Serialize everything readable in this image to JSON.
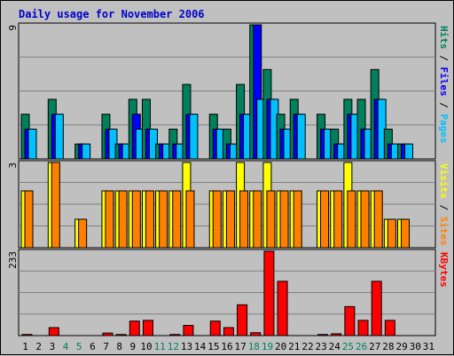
{
  "chart_data": {
    "type": "bar",
    "title": "Daily usage for November 2006",
    "days": [
      "1",
      "2",
      "3",
      "4",
      "5",
      "6",
      "7",
      "8",
      "9",
      "10",
      "11",
      "12",
      "13",
      "14",
      "15",
      "16",
      "17",
      "18",
      "19",
      "20",
      "21",
      "22",
      "23",
      "24",
      "25",
      "26",
      "27",
      "28",
      "29",
      "30",
      "31"
    ],
    "weekend_days": [
      "4",
      "5",
      "11",
      "12",
      "18",
      "19",
      "25",
      "26"
    ],
    "panels": [
      {
        "name": "hits-files-pages",
        "max_label": "9",
        "ylim": [
          0,
          9
        ],
        "axis_label_parts": [
          {
            "text": "Pages",
            "color": "#00c0ff"
          },
          {
            "text": " / ",
            "color": "#000000"
          },
          {
            "text": "Files",
            "color": "#0000ff"
          },
          {
            "text": " / ",
            "color": "#000000"
          },
          {
            "text": "Hits",
            "color": "#00805c"
          }
        ],
        "series": [
          {
            "name": "Hits",
            "color": "#00805c",
            "values": [
              3,
              0,
              4,
              0,
              1,
              0,
              3,
              1,
              4,
              4,
              1,
              2,
              5,
              0,
              3,
              2,
              5,
              9,
              6,
              3,
              4,
              0,
              3,
              2,
              4,
              4,
              6,
              2,
              1,
              0,
              0
            ]
          },
          {
            "name": "Files",
            "color": "#0000ff",
            "values": [
              2,
              0,
              3,
              0,
              1,
              0,
              2,
              1,
              3,
              2,
              1,
              1,
              3,
              0,
              2,
              1,
              3,
              9,
              4,
              2,
              3,
              0,
              2,
              1,
              3,
              2,
              4,
              1,
              1,
              0,
              0
            ]
          },
          {
            "name": "Pages",
            "color": "#00c0ff",
            "values": [
              2,
              0,
              3,
              0,
              1,
              0,
              2,
              1,
              2,
              2,
              1,
              1,
              3,
              0,
              2,
              1,
              3,
              4,
              4,
              2,
              3,
              0,
              2,
              1,
              3,
              2,
              4,
              1,
              1,
              0,
              0
            ]
          }
        ]
      },
      {
        "name": "visits-sites",
        "max_label": "3",
        "ylim": [
          0,
          3
        ],
        "axis_label_parts": [
          {
            "text": "Sites",
            "color": "#ff8000"
          },
          {
            "text": " / ",
            "color": "#000000"
          },
          {
            "text": "Visits",
            "color": "#ffff00"
          }
        ],
        "series": [
          {
            "name": "Visits",
            "color": "#ffff00",
            "values": [
              2,
              0,
              3,
              0,
              1,
              0,
              2,
              2,
              2,
              2,
              2,
              2,
              3,
              0,
              2,
              2,
              3,
              2,
              3,
              2,
              2,
              0,
              2,
              2,
              3,
              2,
              2,
              1,
              1,
              0,
              0
            ]
          },
          {
            "name": "Sites",
            "color": "#ff8000",
            "values": [
              2,
              0,
              3,
              0,
              1,
              0,
              2,
              2,
              2,
              2,
              2,
              2,
              2,
              0,
              2,
              2,
              2,
              2,
              2,
              2,
              2,
              0,
              2,
              2,
              2,
              2,
              2,
              1,
              1,
              0,
              0
            ]
          }
        ]
      },
      {
        "name": "kbytes",
        "max_label": "233",
        "ylim": [
          0,
          233
        ],
        "axis_label_parts": [
          {
            "text": "KBytes",
            "color": "#ff0000"
          }
        ],
        "series": [
          {
            "name": "KBytes",
            "color": "#ff0000",
            "values": [
              3,
              0,
              22,
              0,
              0,
              0,
              7,
              3,
              40,
              42,
              0,
              3,
              28,
              0,
              40,
              22,
              85,
              8,
              233,
              150,
              0,
              0,
              3,
              5,
              80,
              42,
              150,
              42,
              0,
              0,
              0
            ]
          }
        ]
      }
    ]
  }
}
